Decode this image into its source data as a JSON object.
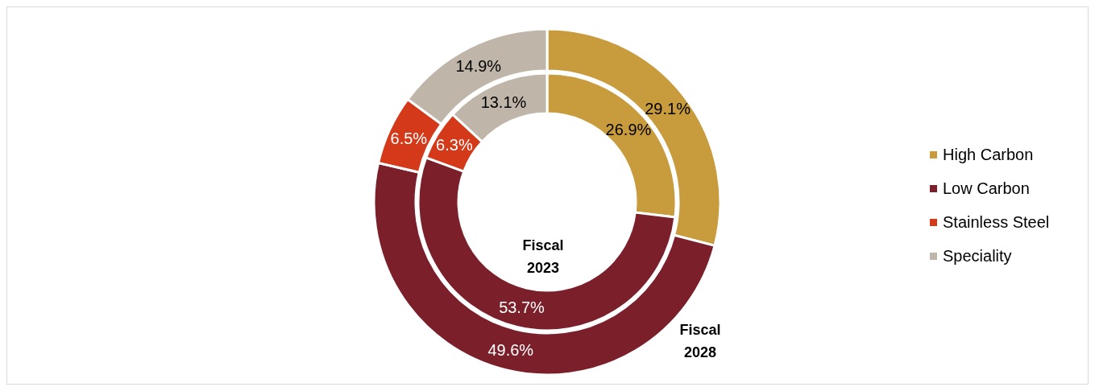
{
  "chart_data": {
    "type": "donut",
    "categories": [
      "High Carbon",
      "Low Carbon",
      "Stainless Steel",
      "Speciality"
    ],
    "colors": [
      "#c89b3c",
      "#7b1f2b",
      "#d4391a",
      "#bfb5a8"
    ],
    "series": [
      {
        "name": "Fiscal 2023",
        "values": [
          26.9,
          53.7,
          6.3,
          13.1
        ],
        "value_labels": [
          "26.9%",
          "53.7%",
          "6.3%",
          "13.1%"
        ]
      },
      {
        "name": "Fiscal 2028",
        "values": [
          29.1,
          49.6,
          6.5,
          14.9
        ],
        "value_labels": [
          "29.1%",
          "49.6%",
          "6.5%",
          "14.9%"
        ]
      }
    ],
    "data_labels": true,
    "legend": "right"
  }
}
